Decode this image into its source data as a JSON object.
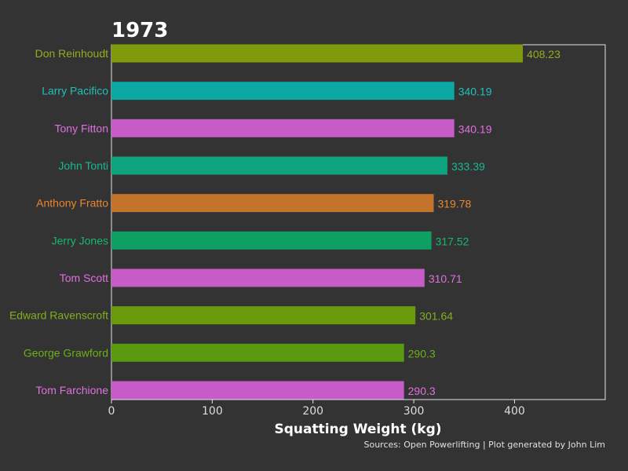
{
  "chart_data": {
    "type": "bar",
    "orientation": "horizontal",
    "title": "1973",
    "xlabel": "Squatting Weight (kg)",
    "source": "Sources: Open Powerlifting | Plot generated by John Lim",
    "xlim": [
      0,
      490
    ],
    "xticks": [
      0,
      100,
      200,
      300,
      400
    ],
    "grid": false,
    "categories": [
      "Don Reinhoudt",
      "Larry Pacifico",
      "Tony Fitton",
      "John Tonti",
      "Anthony Fratto",
      "Jerry Jones",
      "Tom Scott",
      "Edward Ravenscroft",
      "George Grawford",
      "Tom Farchione"
    ],
    "values": [
      408.23,
      340.19,
      340.19,
      333.39,
      319.78,
      317.52,
      310.71,
      301.64,
      290.3,
      290.3
    ],
    "value_labels": [
      "408.23",
      "340.19",
      "340.19",
      "333.39",
      "319.78",
      "317.52",
      "310.71",
      "301.64",
      "290.3",
      "290.3"
    ],
    "bar_colors": [
      "#7f9a0c",
      "#0ba8a4",
      "#c75bc7",
      "#0da37e",
      "#c4742a",
      "#0f9f62",
      "#c75bc7",
      "#6a9a0c",
      "#5a9a10",
      "#c75bc7"
    ],
    "label_colors": [
      "#9aaa1c",
      "#1fc0bc",
      "#e070e0",
      "#1ab890",
      "#e8872f",
      "#16b870",
      "#e070e0",
      "#7fb01a",
      "#6cb018",
      "#e070e0"
    ]
  }
}
